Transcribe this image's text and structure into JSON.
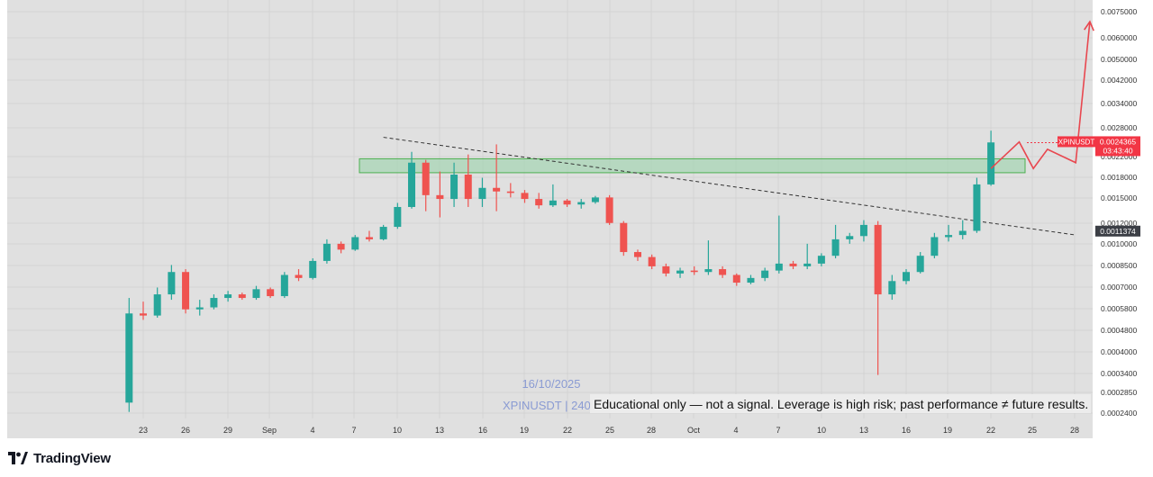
{
  "brand": {
    "name": "TradingView",
    "icon": "tradingview-logo-icon"
  },
  "chart_data": {
    "type": "candlestick",
    "symbol": "XPINUSDT",
    "price_scale": "log",
    "y_ticks": [
      "0.0075000",
      "0.0060000",
      "0.0050000",
      "0.0042000",
      "0.0034000",
      "0.0028000",
      "0.0022000",
      "0.0018000",
      "0.0015000",
      "0.0012000",
      "0.0010000",
      "0.0008500",
      "0.0007000",
      "0.0005800",
      "0.0004800",
      "0.0004000",
      "0.0003400",
      "0.0002850",
      "0.0002400"
    ],
    "x_ticks": [
      "23",
      "26",
      "29",
      "Sep",
      "4",
      "7",
      "10",
      "13",
      "16",
      "19",
      "22",
      "25",
      "28",
      "Oct",
      "4",
      "7",
      "10",
      "13",
      "16",
      "19",
      "22",
      "25",
      "28"
    ],
    "last_price_label": {
      "symbol": "XPINUSDT",
      "price": "0.0024365",
      "countdown": "03:43:40",
      "price_value": 0.0024365
    },
    "crosshair_price_label": {
      "text": "0.0011374",
      "value": 0.0011374
    },
    "candles": [
      {
        "date": "2025-08-22",
        "o": 0.00026,
        "h": 0.00064,
        "l": 0.00024,
        "c": 0.00056
      },
      {
        "date": "2025-08-23",
        "o": 0.00056,
        "h": 0.00062,
        "l": 0.00053,
        "c": 0.00055
      },
      {
        "date": "2025-08-24",
        "o": 0.00055,
        "h": 0.0007,
        "l": 0.00054,
        "c": 0.00066
      },
      {
        "date": "2025-08-25",
        "o": 0.00066,
        "h": 0.00085,
        "l": 0.00063,
        "c": 0.0008
      },
      {
        "date": "2025-08-26",
        "o": 0.0008,
        "h": 0.00082,
        "l": 0.00056,
        "c": 0.00058
      },
      {
        "date": "2025-08-27",
        "o": 0.00058,
        "h": 0.00063,
        "l": 0.00055,
        "c": 0.00059
      },
      {
        "date": "2025-08-28",
        "o": 0.00059,
        "h": 0.00066,
        "l": 0.00058,
        "c": 0.00064
      },
      {
        "date": "2025-08-29",
        "o": 0.00064,
        "h": 0.00068,
        "l": 0.00062,
        "c": 0.00066
      },
      {
        "date": "2025-08-30",
        "o": 0.00066,
        "h": 0.00067,
        "l": 0.00063,
        "c": 0.00064
      },
      {
        "date": "2025-08-31",
        "o": 0.00064,
        "h": 0.00071,
        "l": 0.00063,
        "c": 0.00069
      },
      {
        "date": "2025-09-01",
        "o": 0.00069,
        "h": 0.0007,
        "l": 0.00064,
        "c": 0.00065
      },
      {
        "date": "2025-09-02",
        "o": 0.00065,
        "h": 0.0008,
        "l": 0.00064,
        "c": 0.00078
      },
      {
        "date": "2025-09-03",
        "o": 0.00078,
        "h": 0.00082,
        "l": 0.00074,
        "c": 0.00076
      },
      {
        "date": "2025-09-04",
        "o": 0.00076,
        "h": 0.0009,
        "l": 0.00075,
        "c": 0.00088
      },
      {
        "date": "2025-09-05",
        "o": 0.00088,
        "h": 0.00106,
        "l": 0.00086,
        "c": 0.00102
      },
      {
        "date": "2025-09-06",
        "o": 0.00102,
        "h": 0.00104,
        "l": 0.00094,
        "c": 0.00097
      },
      {
        "date": "2025-09-07",
        "o": 0.00097,
        "h": 0.0011,
        "l": 0.00096,
        "c": 0.00108
      },
      {
        "date": "2025-09-08",
        "o": 0.00108,
        "h": 0.00114,
        "l": 0.00104,
        "c": 0.00106
      },
      {
        "date": "2025-09-09",
        "o": 0.00106,
        "h": 0.0012,
        "l": 0.00105,
        "c": 0.00118
      },
      {
        "date": "2025-09-10",
        "o": 0.00118,
        "h": 0.00145,
        "l": 0.00116,
        "c": 0.0014
      },
      {
        "date": "2025-09-11",
        "o": 0.0014,
        "h": 0.00225,
        "l": 0.00138,
        "c": 0.00205
      },
      {
        "date": "2025-09-12",
        "o": 0.00205,
        "h": 0.0021,
        "l": 0.00135,
        "c": 0.00155
      },
      {
        "date": "2025-09-13",
        "o": 0.00155,
        "h": 0.0019,
        "l": 0.00128,
        "c": 0.0015
      },
      {
        "date": "2025-09-14",
        "o": 0.0015,
        "h": 0.00205,
        "l": 0.0014,
        "c": 0.00185
      },
      {
        "date": "2025-09-15",
        "o": 0.00185,
        "h": 0.0022,
        "l": 0.0014,
        "c": 0.0015
      },
      {
        "date": "2025-09-16",
        "o": 0.0015,
        "h": 0.0018,
        "l": 0.0014,
        "c": 0.00165
      },
      {
        "date": "2025-09-17",
        "o": 0.00165,
        "h": 0.0024,
        "l": 0.00135,
        "c": 0.0016
      },
      {
        "date": "2025-09-18",
        "o": 0.0016,
        "h": 0.00172,
        "l": 0.00152,
        "c": 0.00158
      },
      {
        "date": "2025-09-19",
        "o": 0.00158,
        "h": 0.00162,
        "l": 0.00145,
        "c": 0.0015
      },
      {
        "date": "2025-09-20",
        "o": 0.0015,
        "h": 0.00158,
        "l": 0.00138,
        "c": 0.00142
      },
      {
        "date": "2025-09-21",
        "o": 0.00142,
        "h": 0.0017,
        "l": 0.0014,
        "c": 0.00148
      },
      {
        "date": "2025-09-22",
        "o": 0.00148,
        "h": 0.0015,
        "l": 0.0014,
        "c": 0.00143
      },
      {
        "date": "2025-09-23",
        "o": 0.00143,
        "h": 0.0015,
        "l": 0.00138,
        "c": 0.00146
      },
      {
        "date": "2025-09-24",
        "o": 0.00146,
        "h": 0.00154,
        "l": 0.00144,
        "c": 0.00152
      },
      {
        "date": "2025-09-25",
        "o": 0.00152,
        "h": 0.00155,
        "l": 0.0012,
        "c": 0.00122
      },
      {
        "date": "2025-09-26",
        "o": 0.00122,
        "h": 0.00124,
        "l": 0.00092,
        "c": 0.00095
      },
      {
        "date": "2025-09-27",
        "o": 0.00095,
        "h": 0.00097,
        "l": 0.00088,
        "c": 0.00091
      },
      {
        "date": "2025-09-28",
        "o": 0.00091,
        "h": 0.00093,
        "l": 0.00082,
        "c": 0.00084
      },
      {
        "date": "2025-09-29",
        "o": 0.00084,
        "h": 0.00086,
        "l": 0.00077,
        "c": 0.00079
      },
      {
        "date": "2025-09-30",
        "o": 0.00079,
        "h": 0.00083,
        "l": 0.00076,
        "c": 0.00081
      },
      {
        "date": "2025-10-01",
        "o": 0.00081,
        "h": 0.00084,
        "l": 0.00078,
        "c": 0.0008
      },
      {
        "date": "2025-10-02",
        "o": 0.0008,
        "h": 0.00105,
        "l": 0.00078,
        "c": 0.00082
      },
      {
        "date": "2025-10-03",
        "o": 0.00082,
        "h": 0.00084,
        "l": 0.00076,
        "c": 0.00078
      },
      {
        "date": "2025-10-04",
        "o": 0.00078,
        "h": 0.00079,
        "l": 0.00071,
        "c": 0.00073
      },
      {
        "date": "2025-10-05",
        "o": 0.00073,
        "h": 0.00078,
        "l": 0.00072,
        "c": 0.00076
      },
      {
        "date": "2025-10-06",
        "o": 0.00076,
        "h": 0.00083,
        "l": 0.00074,
        "c": 0.00081
      },
      {
        "date": "2025-10-07",
        "o": 0.00081,
        "h": 0.0013,
        "l": 0.00079,
        "c": 0.00086
      },
      {
        "date": "2025-10-08",
        "o": 0.00086,
        "h": 0.00088,
        "l": 0.00082,
        "c": 0.00084
      },
      {
        "date": "2025-10-09",
        "o": 0.00084,
        "h": 0.00102,
        "l": 0.00082,
        "c": 0.00086
      },
      {
        "date": "2025-10-10",
        "o": 0.00086,
        "h": 0.00094,
        "l": 0.00084,
        "c": 0.00092
      },
      {
        "date": "2025-10-11",
        "o": 0.00092,
        "h": 0.0012,
        "l": 0.0009,
        "c": 0.00106
      },
      {
        "date": "2025-10-12",
        "o": 0.00106,
        "h": 0.00112,
        "l": 0.00102,
        "c": 0.00109
      },
      {
        "date": "2025-10-13",
        "o": 0.00109,
        "h": 0.00125,
        "l": 0.00104,
        "c": 0.0012
      },
      {
        "date": "2025-10-14",
        "o": 0.0012,
        "h": 0.00124,
        "l": 0.00033,
        "c": 0.00066
      },
      {
        "date": "2025-10-15",
        "o": 0.00066,
        "h": 0.00078,
        "l": 0.00063,
        "c": 0.00074
      },
      {
        "date": "2025-10-16",
        "o": 0.00074,
        "h": 0.00082,
        "l": 0.00072,
        "c": 0.0008
      },
      {
        "date": "2025-10-17",
        "o": 0.0008,
        "h": 0.00095,
        "l": 0.00079,
        "c": 0.00092
      },
      {
        "date": "2025-10-18",
        "o": 0.00092,
        "h": 0.00112,
        "l": 0.0009,
        "c": 0.00108
      },
      {
        "date": "2025-10-19",
        "o": 0.00108,
        "h": 0.0012,
        "l": 0.00104,
        "c": 0.0011
      },
      {
        "date": "2025-10-20",
        "o": 0.0011,
        "h": 0.00125,
        "l": 0.00106,
        "c": 0.00114
      },
      {
        "date": "2025-10-21",
        "o": 0.00114,
        "h": 0.0018,
        "l": 0.00112,
        "c": 0.0017
      },
      {
        "date": "2025-10-22",
        "o": 0.0017,
        "h": 0.0027,
        "l": 0.00168,
        "c": 0.00244
      }
    ],
    "resistance_zone": {
      "low": 0.00188,
      "high": 0.00212
    },
    "trendline": {
      "start": {
        "date": "2025-09-09",
        "value": 0.00255
      },
      "end": {
        "date": "2025-10-28",
        "value": 0.0011
      }
    },
    "projection_path": [
      {
        "date": "2025-10-22",
        "value": 0.00195
      },
      {
        "date": "2025-10-24",
        "value": 0.00245
      },
      {
        "date": "2025-10-25",
        "value": 0.00195
      },
      {
        "date": "2025-10-26",
        "value": 0.0023
      },
      {
        "date": "2025-10-28",
        "value": 0.00205
      },
      {
        "date": "2025-10-29",
        "value": 0.0069
      }
    ],
    "watermark": {
      "date": "16/10/2025",
      "symbol_line": "XPINUSDT | 240"
    },
    "disclaimer": "Educational only — not a signal. Leverage is high risk; past performance ≠ future results.",
    "colors": {
      "background": "#e0e0e0",
      "up_candle": "#26a69a",
      "down_candle": "#ef5350",
      "zone_fill": "#a8d5b5",
      "zone_border": "#4caf50",
      "projection": "#e8474f",
      "trendline": "#333333",
      "last_price_bg": "#f23645",
      "crosshair_label_bg": "#3c3f46",
      "watermark": "#8a9bd3"
    }
  }
}
